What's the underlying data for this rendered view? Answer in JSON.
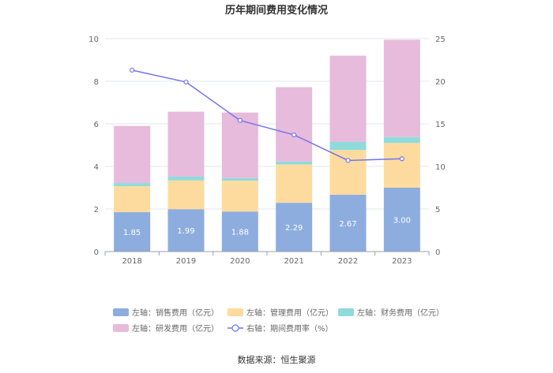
{
  "chart_data": {
    "type": "bar",
    "stacked": true,
    "title": "历年期间费用变化情况",
    "categories": [
      "2018",
      "2019",
      "2020",
      "2021",
      "2022",
      "2023"
    ],
    "ylim_left": [
      0,
      10
    ],
    "yticks_left": [
      0,
      2,
      4,
      6,
      8,
      10
    ],
    "ylim_right": [
      0,
      25
    ],
    "yticks_right": [
      0,
      5,
      10,
      15,
      20,
      25
    ],
    "series": [
      {
        "name": "左轴：销售费用（亿元）",
        "axis": "left",
        "color": "#8dadde",
        "values": [
          1.85,
          1.99,
          1.88,
          2.29,
          2.67,
          3.0
        ],
        "labels": [
          "1.85",
          "1.99",
          "1.88",
          "2.29",
          "2.67",
          "3.00"
        ]
      },
      {
        "name": "左轴：管理费用（亿元）",
        "axis": "left",
        "color": "#fddb9e",
        "values": [
          1.22,
          1.35,
          1.45,
          1.8,
          2.1,
          2.1
        ]
      },
      {
        "name": "左轴：财务费用（亿元）",
        "axis": "left",
        "color": "#8fdbdc",
        "values": [
          0.15,
          0.18,
          0.12,
          0.14,
          0.38,
          0.28
        ]
      },
      {
        "name": "左轴：研发费用（亿元）",
        "axis": "left",
        "color": "#e7bbdc",
        "values": [
          2.68,
          3.05,
          3.08,
          3.49,
          4.05,
          4.57
        ]
      },
      {
        "name": "右轴：期间费用率（%）",
        "axis": "right",
        "type": "line",
        "color": "#7174f0",
        "values": [
          21.3,
          19.9,
          15.4,
          13.7,
          10.7,
          10.9
        ]
      }
    ],
    "legend_position": "bottom",
    "grid": true
  },
  "footer": {
    "source": "数据来源：恒生聚源"
  }
}
